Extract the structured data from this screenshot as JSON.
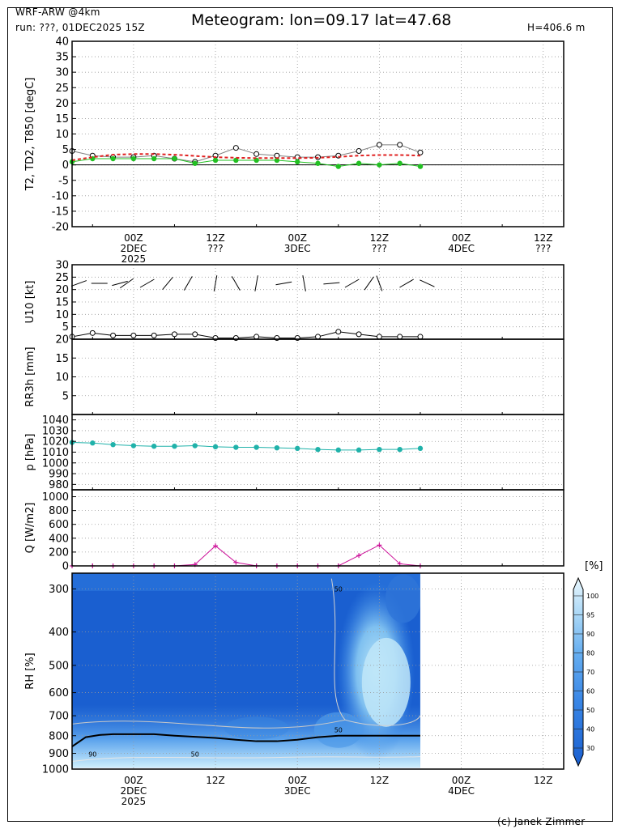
{
  "header": {
    "model": "WRF-ARW @4km",
    "run": "run: ???, 01DEC2025 15Z",
    "title": "Meteogram: lon=09.17 lat=47.68",
    "height": "H=406.6 m",
    "credit": "(c) Janek Zimmer"
  },
  "time_axis": {
    "labels": [
      {
        "hour": 9,
        "lines": [
          "00Z",
          "2DEC",
          "2025"
        ]
      },
      {
        "hour": 21,
        "lines": [
          "12Z",
          "???"
        ]
      },
      {
        "hour": 33,
        "lines": [
          "00Z",
          "3DEC"
        ]
      },
      {
        "hour": 45,
        "lines": [
          "12Z",
          "???"
        ]
      },
      {
        "hour": 57,
        "lines": [
          "00Z",
          "4DEC"
        ]
      },
      {
        "hour": 69,
        "lines": [
          "12Z",
          "???"
        ]
      }
    ],
    "bottom_labels": [
      {
        "hour": 9,
        "lines": [
          "00Z",
          "2DEC",
          "2025"
        ]
      },
      {
        "hour": 21,
        "lines": [
          "12Z"
        ]
      },
      {
        "hour": 33,
        "lines": [
          "00Z",
          "3DEC"
        ]
      },
      {
        "hour": 45,
        "lines": [
          "12Z"
        ]
      },
      {
        "hour": 57,
        "lines": [
          "00Z",
          "4DEC"
        ]
      },
      {
        "hour": 69,
        "lines": [
          "12Z"
        ]
      }
    ]
  },
  "chart_data": [
    {
      "type": "line",
      "ylabel": "T2, TD2, T850 [degC]",
      "ylim": [
        -20,
        40
      ],
      "yticks": [
        -20,
        -15,
        -10,
        -5,
        0,
        5,
        10,
        15,
        20,
        25,
        30,
        35,
        40
      ],
      "grid": true,
      "x": [
        0,
        3,
        6,
        9,
        12,
        15,
        18,
        21,
        24,
        27,
        30,
        33,
        36,
        39,
        42,
        45,
        48,
        51
      ],
      "series": [
        {
          "key": "T2",
          "color": "#808080",
          "marker": "open-circle",
          "values": [
            4.5,
            3,
            2.5,
            2.5,
            3,
            2,
            1,
            3,
            5.5,
            3.5,
            3,
            2.5,
            2.5,
            3,
            4.5,
            6.5,
            6.5,
            4
          ]
        },
        {
          "key": "TD2",
          "color": "#22c022",
          "marker": "filled-circle",
          "values": [
            1,
            2,
            2,
            2,
            2,
            2,
            0.5,
            1.5,
            1.5,
            1.5,
            1.5,
            1,
            0.5,
            -0.5,
            0.5,
            0,
            0.5,
            -0.5
          ]
        },
        {
          "key": "T850",
          "color": "#e02020",
          "marker": "dashed",
          "values": [
            1.5,
            2.5,
            3.3,
            3.5,
            3.5,
            3.3,
            2.9,
            2.5,
            2.3,
            2.2,
            2.2,
            2.2,
            2.3,
            2.6,
            3,
            3.2,
            3.2,
            3
          ]
        }
      ]
    },
    {
      "type": "line",
      "ylabel": "U10 [kt]",
      "ylim": [
        0,
        30
      ],
      "yticks": [
        5,
        10,
        15,
        20,
        25,
        30
      ],
      "grid": true,
      "x": [
        0,
        3,
        6,
        9,
        12,
        15,
        18,
        21,
        24,
        27,
        30,
        33,
        36,
        39,
        42,
        45,
        48,
        51
      ],
      "series": [
        {
          "key": "U10",
          "color": "#000000",
          "marker": "open-circle",
          "values": [
            1,
            2.5,
            1.5,
            1.5,
            1.5,
            2,
            2,
            0.5,
            0.5,
            1,
            0.5,
            0.5,
            1,
            3,
            2,
            1,
            1,
            1
          ]
        }
      ],
      "wind_barbs": [
        {
          "hour": 1,
          "dir": 250
        },
        {
          "hour": 4,
          "dir": 270
        },
        {
          "hour": 7,
          "dir": 255
        },
        {
          "hour": 8,
          "dir": 235
        },
        {
          "hour": 11,
          "dir": 240
        },
        {
          "hour": 14,
          "dir": 220
        },
        {
          "hour": 17,
          "dir": 210
        },
        {
          "hour": 21,
          "dir": 190
        },
        {
          "hour": 24,
          "dir": 150
        },
        {
          "hour": 27,
          "dir": 190
        },
        {
          "hour": 31,
          "dir": 260
        },
        {
          "hour": 34,
          "dir": 170
        },
        {
          "hour": 38,
          "dir": 265
        },
        {
          "hour": 41,
          "dir": 240
        },
        {
          "hour": 43.5,
          "dir": 215
        },
        {
          "hour": 45,
          "dir": 160
        },
        {
          "hour": 49,
          "dir": 240
        },
        {
          "hour": 52,
          "dir": 295
        }
      ]
    },
    {
      "type": "bar",
      "ylabel": "RR3h [mm]",
      "ylim": [
        0,
        20
      ],
      "yticks": [
        5,
        10,
        15,
        20
      ],
      "grid": true,
      "x": [],
      "values": []
    },
    {
      "type": "line",
      "ylabel": "p [hPa]",
      "ylim": [
        975,
        1045
      ],
      "yticks": [
        980,
        990,
        1000,
        1010,
        1020,
        1030,
        1040
      ],
      "grid": true,
      "x": [
        0,
        3,
        6,
        9,
        12,
        15,
        18,
        21,
        24,
        27,
        30,
        33,
        36,
        39,
        42,
        45,
        48,
        51
      ],
      "series": [
        {
          "key": "p",
          "color": "#20b2aa",
          "marker": "filled-circle",
          "values": [
            1019,
            1018.5,
            1017,
            1016,
            1015.5,
            1015.5,
            1016,
            1015,
            1014.5,
            1014.5,
            1014,
            1013.5,
            1012.5,
            1012,
            1012,
            1012.5,
            1012.5,
            1013.5
          ]
        }
      ]
    },
    {
      "type": "line",
      "ylabel": "Q [W/m2]",
      "ylim": [
        0,
        1100
      ],
      "yticks": [
        0,
        200,
        400,
        600,
        800,
        1000
      ],
      "grid": true,
      "x": [
        0,
        3,
        6,
        9,
        12,
        15,
        18,
        21,
        24,
        27,
        30,
        33,
        36,
        39,
        42,
        45,
        48,
        51
      ],
      "series": [
        {
          "key": "Q",
          "color": "#cc1199",
          "marker": "plus",
          "values": [
            0,
            0,
            0,
            0,
            0,
            0,
            20,
            290,
            50,
            0,
            0,
            0,
            0,
            0,
            150,
            300,
            30,
            0
          ]
        }
      ]
    },
    {
      "type": "heatmap",
      "ylabel": "RH [%]",
      "pressure_levels": [
        300,
        400,
        500,
        600,
        700,
        800,
        900,
        1000
      ],
      "colorbar": {
        "unit": "[%]",
        "ticks": [
          30,
          40,
          50,
          60,
          70,
          80,
          90,
          95,
          100
        ]
      },
      "contour_labels": [
        {
          "hour": 39,
          "p": 300,
          "text": "50"
        },
        {
          "hour": 39,
          "p": 770,
          "text": "50"
        },
        {
          "hour": 18,
          "p": 905,
          "text": "50"
        },
        {
          "hour": 3,
          "p": 905,
          "text": "90"
        }
      ],
      "boundary_layer": {
        "x": [
          0,
          2,
          4,
          6,
          9,
          12,
          15,
          18,
          21,
          24,
          27,
          30,
          33,
          36,
          39,
          42,
          45,
          48,
          51
        ],
        "p": [
          860,
          808,
          796,
          792,
          792,
          792,
          800,
          806,
          812,
          822,
          830,
          830,
          822,
          808,
          800,
          800,
          800,
          800,
          800
        ]
      }
    }
  ]
}
